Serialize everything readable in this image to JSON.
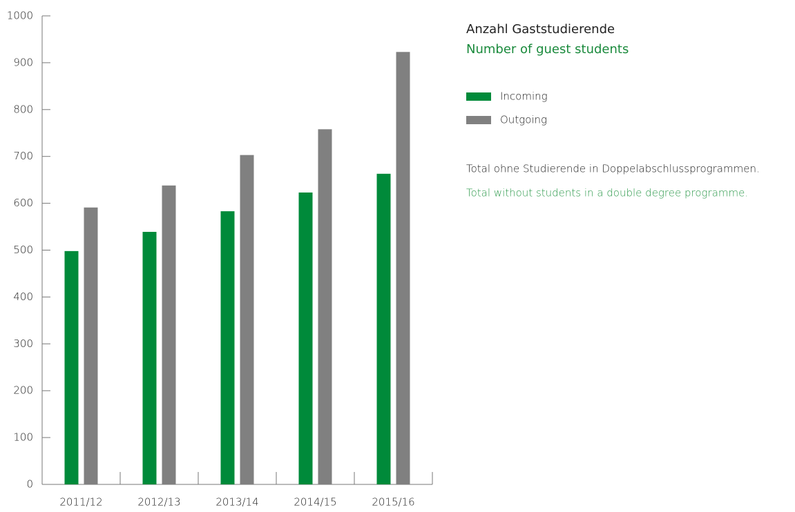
{
  "chart_data": {
    "type": "bar",
    "title": "Anzahl Gaststudierende",
    "subtitle": "Number of guest students",
    "notes": [
      "Total ohne Studierende in Doppelabschlussprogrammen.",
      "Total without students in a double degree programme."
    ],
    "categories": [
      "2011/12",
      "2012/13",
      "2013/14",
      "2014/15",
      "2015/16"
    ],
    "series": [
      {
        "name": "Incoming",
        "color": "#008a3a",
        "values": [
          498,
          539,
          583,
          623,
          663
        ]
      },
      {
        "name": "Outgoing",
        "color": "#808080",
        "values": [
          591,
          638,
          703,
          758,
          923
        ]
      }
    ],
    "ylim": [
      0,
      1000
    ],
    "yticks": [
      0,
      100,
      200,
      300,
      400,
      500,
      600,
      700,
      800,
      900,
      1000
    ]
  }
}
